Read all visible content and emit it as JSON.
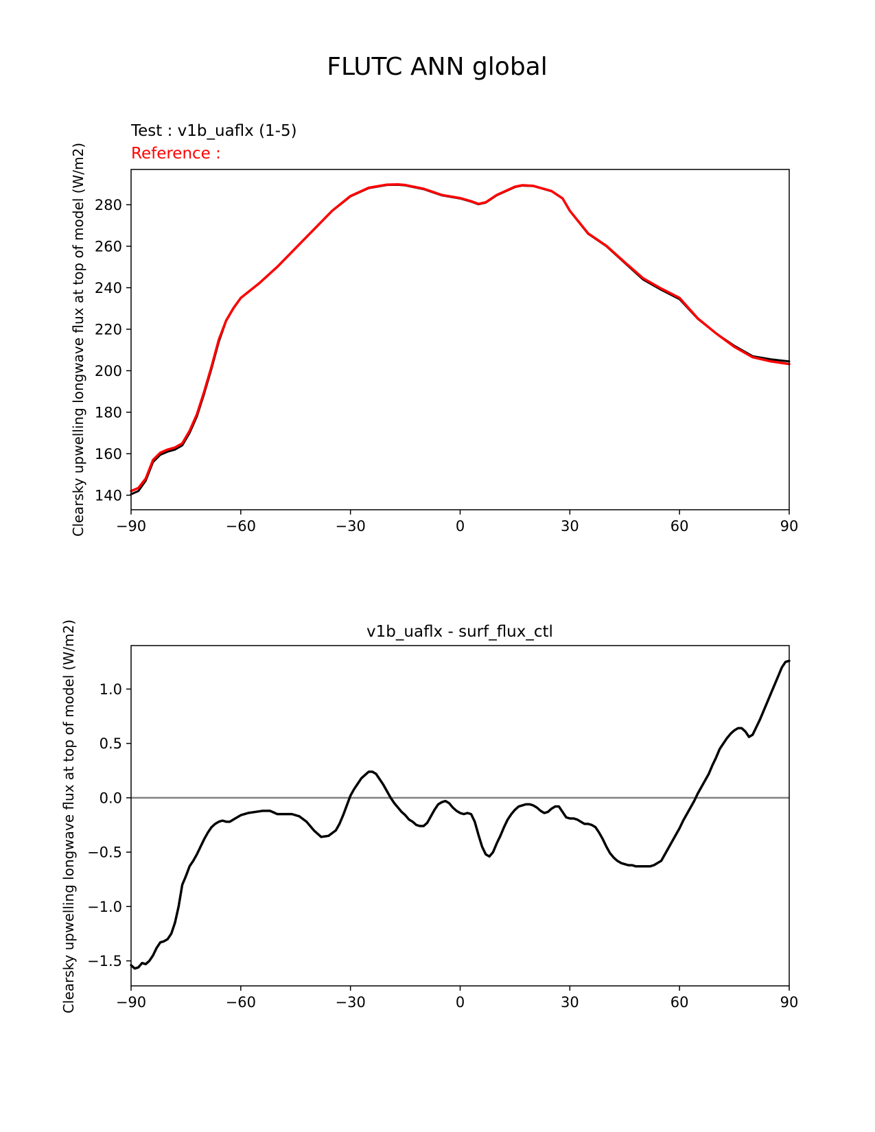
{
  "figure": {
    "title": "FLUTC ANN global"
  },
  "colors": {
    "test": "#000000",
    "reference": "#ff0000",
    "diff": "#000000",
    "zero_line": "#808080",
    "axes": "#000000"
  },
  "chart_data": [
    {
      "type": "line",
      "title": "",
      "labels": {
        "test": "Test : v1b_uaflx (1-5)",
        "reference": "Reference :"
      },
      "xlabel": "",
      "ylabel": "Clearsky upwelling longwave flux at top of model (W/m2)",
      "xlim": [
        -90,
        90
      ],
      "ylim": [
        133,
        297
      ],
      "xticks": [
        -90,
        -60,
        -30,
        0,
        30,
        60,
        90
      ],
      "xticklabels": [
        "−90",
        "−60",
        "−30",
        "0",
        "30",
        "60",
        "90"
      ],
      "yticks": [
        140,
        160,
        180,
        200,
        220,
        240,
        260,
        280
      ],
      "yticklabels": [
        "140",
        "160",
        "180",
        "200",
        "220",
        "240",
        "260",
        "280"
      ],
      "series": [
        {
          "name": "test",
          "x": [
            -90,
            -88,
            -86,
            -84,
            -82,
            -80,
            -78,
            -76,
            -74,
            -72,
            -70,
            -68,
            -66,
            -64,
            -62,
            -60,
            -55,
            -50,
            -45,
            -40,
            -35,
            -30,
            -25,
            -20,
            -17,
            -15,
            -10,
            -5,
            0,
            3,
            5,
            7,
            10,
            15,
            17,
            20,
            25,
            28,
            30,
            35,
            40,
            45,
            50,
            55,
            60,
            65,
            70,
            75,
            80,
            85,
            90
          ],
          "y": [
            140.5,
            142,
            147,
            156,
            159.5,
            161,
            162,
            164,
            170,
            178,
            189,
            201,
            214,
            224,
            230,
            235,
            242,
            250,
            259,
            268,
            277,
            284,
            288,
            289.5,
            289.6,
            289.3,
            287.5,
            284.5,
            283,
            281.5,
            280.2,
            281,
            284.5,
            288.5,
            289.2,
            289,
            286.5,
            283,
            277,
            266,
            260,
            252,
            244,
            239,
            234.5,
            225,
            218,
            212,
            207,
            205.5,
            204.5
          ]
        },
        {
          "name": "reference",
          "x": [
            -90,
            -88,
            -86,
            -84,
            -82,
            -80,
            -78,
            -76,
            -74,
            -72,
            -70,
            -68,
            -66,
            -64,
            -62,
            -60,
            -55,
            -50,
            -45,
            -40,
            -35,
            -30,
            -25,
            -20,
            -17,
            -15,
            -10,
            -5,
            0,
            3,
            5,
            7,
            10,
            15,
            17,
            20,
            25,
            28,
            30,
            35,
            40,
            45,
            50,
            55,
            60,
            65,
            70,
            75,
            80,
            85,
            90
          ],
          "y": [
            142,
            143.5,
            148,
            157,
            160.5,
            162,
            163,
            165,
            171,
            179,
            190,
            202,
            215,
            224.2,
            230.2,
            235.1,
            242.1,
            250.1,
            259.1,
            268.1,
            277.1,
            284.2,
            288.2,
            289.7,
            289.8,
            289.5,
            287.7,
            284.7,
            283.2,
            281.7,
            280.4,
            281.2,
            284.7,
            288.7,
            289.4,
            289.1,
            286.6,
            283.1,
            277.1,
            266.2,
            260.2,
            252.3,
            244.6,
            239.6,
            235.1,
            225.2,
            218,
            211.5,
            206.5,
            204.5,
            203.2
          ]
        }
      ]
    },
    {
      "type": "line",
      "title": "v1b_uaflx - surf_flux_ctl",
      "xlabel": "",
      "ylabel": "Clearsky upwelling longwave flux at top of model (W/m2)",
      "xlim": [
        -90,
        90
      ],
      "ylim": [
        -1.73,
        1.4
      ],
      "xticks": [
        -90,
        -60,
        -30,
        0,
        30,
        60,
        90
      ],
      "xticklabels": [
        "−90",
        "−60",
        "−30",
        "0",
        "30",
        "60",
        "90"
      ],
      "yticks": [
        -1.5,
        -1.0,
        -0.5,
        0.0,
        0.5,
        1.0
      ],
      "yticklabels": [
        "−1.5",
        "−1.0",
        "−0.5",
        "0.0",
        "0.5",
        "1.0"
      ],
      "zero_line": 0,
      "series": [
        {
          "name": "v1b_uaflx - surf_flux_ctl",
          "x": [
            -90,
            -89,
            -88,
            -87,
            -86,
            -85,
            -84,
            -83,
            -82,
            -81,
            -80,
            -79,
            -78,
            -77,
            -76,
            -75,
            -74,
            -73,
            -72,
            -71,
            -70,
            -69,
            -68,
            -67,
            -66,
            -65,
            -64,
            -63,
            -62,
            -61,
            -60,
            -58,
            -56,
            -54,
            -52,
            -50,
            -48,
            -46,
            -44,
            -42,
            -40,
            -38,
            -36,
            -34,
            -33,
            -32,
            -31,
            -30,
            -29,
            -28,
            -27,
            -26,
            -25,
            -24,
            -23,
            -22,
            -21,
            -20,
            -19,
            -18,
            -17,
            -16,
            -15,
            -14,
            -13,
            -12,
            -11,
            -10,
            -9,
            -8,
            -7,
            -6,
            -5,
            -4,
            -3,
            -2,
            -1,
            0,
            1,
            2,
            3,
            4,
            5,
            6,
            7,
            8,
            9,
            10,
            11,
            12,
            13,
            14,
            15,
            16,
            17,
            18,
            19,
            20,
            21,
            22,
            23,
            24,
            25,
            26,
            27,
            28,
            29,
            30,
            31,
            32,
            33,
            34,
            35,
            36,
            37,
            38,
            39,
            40,
            41,
            42,
            43,
            44,
            45,
            46,
            47,
            48,
            49,
            50,
            51,
            52,
            53,
            54,
            55,
            56,
            57,
            58,
            59,
            60,
            61,
            62,
            63,
            64,
            65,
            66,
            67,
            68,
            69,
            70,
            71,
            72,
            73,
            74,
            75,
            76,
            77,
            78,
            79,
            80,
            81,
            82,
            83,
            84,
            85,
            86,
            87,
            88,
            89,
            90
          ],
          "y": [
            -1.54,
            -1.57,
            -1.56,
            -1.52,
            -1.53,
            -1.5,
            -1.45,
            -1.38,
            -1.33,
            -1.32,
            -1.3,
            -1.25,
            -1.15,
            -1.0,
            -0.8,
            -0.72,
            -0.63,
            -0.58,
            -0.52,
            -0.45,
            -0.38,
            -0.32,
            -0.27,
            -0.24,
            -0.22,
            -0.21,
            -0.22,
            -0.22,
            -0.2,
            -0.18,
            -0.16,
            -0.14,
            -0.13,
            -0.12,
            -0.12,
            -0.15,
            -0.15,
            -0.15,
            -0.17,
            -0.22,
            -0.3,
            -0.36,
            -0.35,
            -0.3,
            -0.24,
            -0.16,
            -0.07,
            0.02,
            0.08,
            0.13,
            0.18,
            0.21,
            0.24,
            0.24,
            0.22,
            0.17,
            0.12,
            0.06,
            0.0,
            -0.05,
            -0.09,
            -0.13,
            -0.16,
            -0.2,
            -0.22,
            -0.25,
            -0.26,
            -0.26,
            -0.23,
            -0.17,
            -0.11,
            -0.06,
            -0.04,
            -0.03,
            -0.05,
            -0.09,
            -0.12,
            -0.14,
            -0.15,
            -0.14,
            -0.15,
            -0.22,
            -0.34,
            -0.45,
            -0.52,
            -0.54,
            -0.5,
            -0.42,
            -0.35,
            -0.27,
            -0.2,
            -0.15,
            -0.11,
            -0.08,
            -0.07,
            -0.06,
            -0.06,
            -0.07,
            -0.09,
            -0.12,
            -0.14,
            -0.13,
            -0.1,
            -0.08,
            -0.08,
            -0.13,
            -0.18,
            -0.19,
            -0.19,
            -0.2,
            -0.22,
            -0.24,
            -0.24,
            -0.25,
            -0.27,
            -0.32,
            -0.38,
            -0.45,
            -0.51,
            -0.55,
            -0.58,
            -0.6,
            -0.61,
            -0.62,
            -0.62,
            -0.63,
            -0.63,
            -0.63,
            -0.63,
            -0.63,
            -0.62,
            -0.6,
            -0.58,
            -0.52,
            -0.46,
            -0.4,
            -0.34,
            -0.28,
            -0.21,
            -0.15,
            -0.09,
            -0.03,
            0.04,
            0.1,
            0.16,
            0.22,
            0.3,
            0.37,
            0.45,
            0.5,
            0.55,
            0.59,
            0.62,
            0.64,
            0.64,
            0.61,
            0.56,
            0.58,
            0.65,
            0.72,
            0.8,
            0.88,
            0.96,
            1.04,
            1.12,
            1.2,
            1.25,
            1.26
          ]
        }
      ]
    }
  ]
}
